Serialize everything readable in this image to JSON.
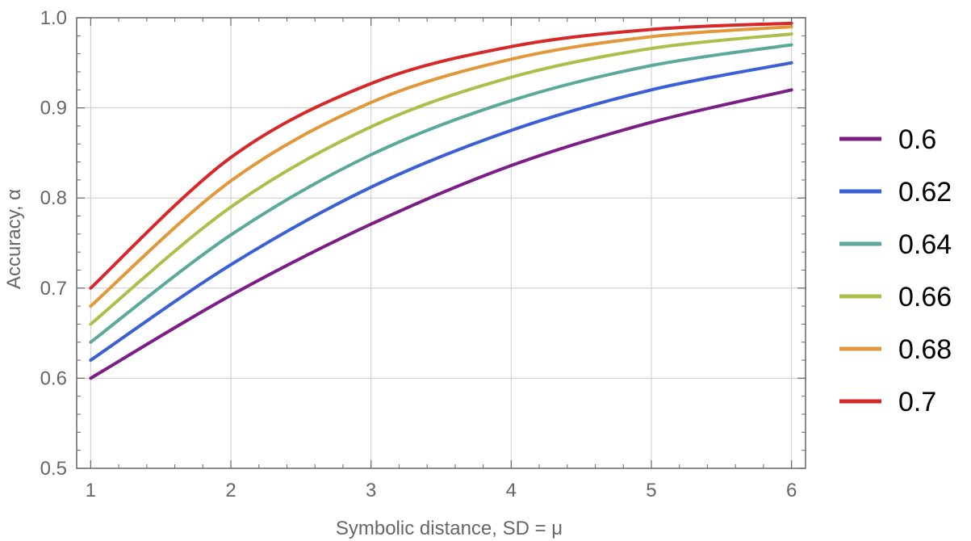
{
  "chart_data": {
    "type": "line",
    "xlabel": "Symbolic distance, SD = μ",
    "ylabel": "Accuracy, α",
    "xlim": [
      0.9,
      6.1
    ],
    "ylim": [
      0.5,
      1.0
    ],
    "xticks": [
      "1",
      "2",
      "3",
      "4",
      "5",
      "6"
    ],
    "yticks": [
      "0.5",
      "0.6",
      "0.7",
      "0.8",
      "0.9",
      "1.0"
    ],
    "grid": true,
    "legend_position": "right",
    "x": [
      1,
      2,
      3,
      4,
      5,
      6
    ],
    "series": [
      {
        "name": "0.6",
        "color": "#7b1f86",
        "values": [
          0.6,
          0.692,
          0.771,
          0.836,
          0.884,
          0.92
        ]
      },
      {
        "name": "0.62",
        "color": "#3b5fd6",
        "values": [
          0.62,
          0.726,
          0.812,
          0.875,
          0.92,
          0.95
        ]
      },
      {
        "name": "0.64",
        "color": "#5aa99a",
        "values": [
          0.64,
          0.759,
          0.848,
          0.908,
          0.947,
          0.97
        ]
      },
      {
        "name": "0.66",
        "color": "#a9c04a",
        "values": [
          0.66,
          0.79,
          0.879,
          0.934,
          0.966,
          0.982
        ]
      },
      {
        "name": "0.68",
        "color": "#e0983a",
        "values": [
          0.68,
          0.819,
          0.906,
          0.954,
          0.979,
          0.99
        ]
      },
      {
        "name": "0.7",
        "color": "#d62828",
        "values": [
          0.7,
          0.845,
          0.927,
          0.968,
          0.987,
          0.994
        ]
      }
    ]
  }
}
